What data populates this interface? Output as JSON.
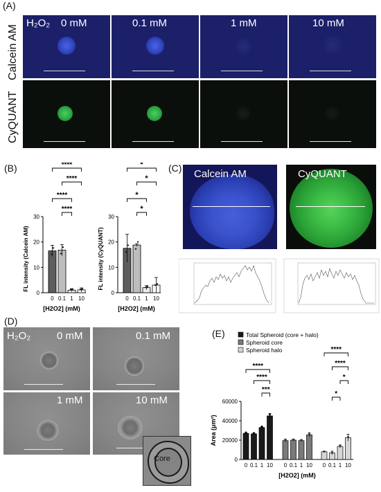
{
  "panels": {
    "a": "(A)",
    "b": "(B)",
    "c": "(C)",
    "d": "(D)",
    "e": "(E)"
  },
  "panel_a": {
    "h2o2_label": "H₂O₂",
    "concentrations": [
      "0 mM",
      "0.1 mM",
      "1 mM",
      "10 mM"
    ],
    "rows": [
      "Calcein AM",
      "CyQUANT"
    ],
    "colors": {
      "calcein_bg": "#1c2069",
      "calcein_blob": "#3d55d8",
      "cyquant_bg": "#0b0f0b",
      "cyquant_blob": "#2db648",
      "scale_bar": "#e6e6e6"
    }
  },
  "panel_c": {
    "left": "Calcein AM",
    "right": "CyQUANT"
  },
  "panel_d": {
    "h2o2_label": "H₂O₂",
    "concentrations": [
      "0 mM",
      "0.1 mM",
      "1 mM",
      "10 mM"
    ],
    "inset_label": "Core"
  },
  "chart_data": [
    {
      "type": "bar",
      "title": "",
      "categories": [
        "0",
        "0.1",
        "1",
        "10"
      ],
      "values": [
        16.5,
        16.8,
        1.0,
        1.1
      ],
      "errors": [
        2.2,
        2.2,
        0.6,
        0.8
      ],
      "xlabel": "[H2O2] (mM)",
      "ylabel": "FL intensity (Calcein AM)",
      "ylim": [
        0,
        30
      ],
      "yticks": [
        "0",
        "10",
        "20",
        "30"
      ],
      "bar_colors": [
        "#5e5e5e",
        "#bdbdbd",
        "#ebebeb",
        "#ffffff"
      ],
      "significance": [
        "****",
        "****",
        "****",
        "****"
      ]
    },
    {
      "type": "bar",
      "title": "",
      "categories": [
        "0",
        "0.1",
        "1",
        "10"
      ],
      "values": [
        17.5,
        18.8,
        2.0,
        3.0
      ],
      "errors": [
        5.5,
        0.5,
        0.8,
        3.0
      ],
      "xlabel": "[H2O2] (mM)",
      "ylabel": "FL intensity (CyQUANT)",
      "ylim": [
        0,
        30
      ],
      "yticks": [
        "0",
        "10",
        "20",
        "30"
      ],
      "bar_colors": [
        "#5e5e5e",
        "#bdbdbd",
        "#ebebeb",
        "#ffffff"
      ],
      "significance": [
        "*",
        "*",
        "*",
        "*"
      ]
    },
    {
      "type": "bar",
      "title": "",
      "categories": [
        "0",
        "0.1",
        "1",
        "10"
      ],
      "series": [
        {
          "name": "Total Spheroid (core + halo)",
          "values": [
            27000,
            26500,
            33000,
            45000
          ],
          "errors": [
            800,
            800,
            700,
            2500
          ]
        },
        {
          "name": "Spheroid core",
          "values": [
            19500,
            20000,
            19500,
            25500
          ],
          "errors": [
            1500,
            1000,
            1000,
            2000
          ]
        },
        {
          "name": "Spheroid halo",
          "values": [
            8000,
            6800,
            13500,
            22500
          ],
          "errors": [
            600,
            1800,
            1500,
            3500
          ]
        }
      ],
      "xlabel": "[H2O2] (mM)",
      "ylabel": "Area (μm²)",
      "ylim": [
        0,
        60000
      ],
      "yticks": [
        "0",
        "20000",
        "40000",
        "60000"
      ],
      "legend": "top-left",
      "significance": [
        "****",
        "****",
        "***",
        "****",
        "****",
        "*",
        "*"
      ]
    }
  ]
}
